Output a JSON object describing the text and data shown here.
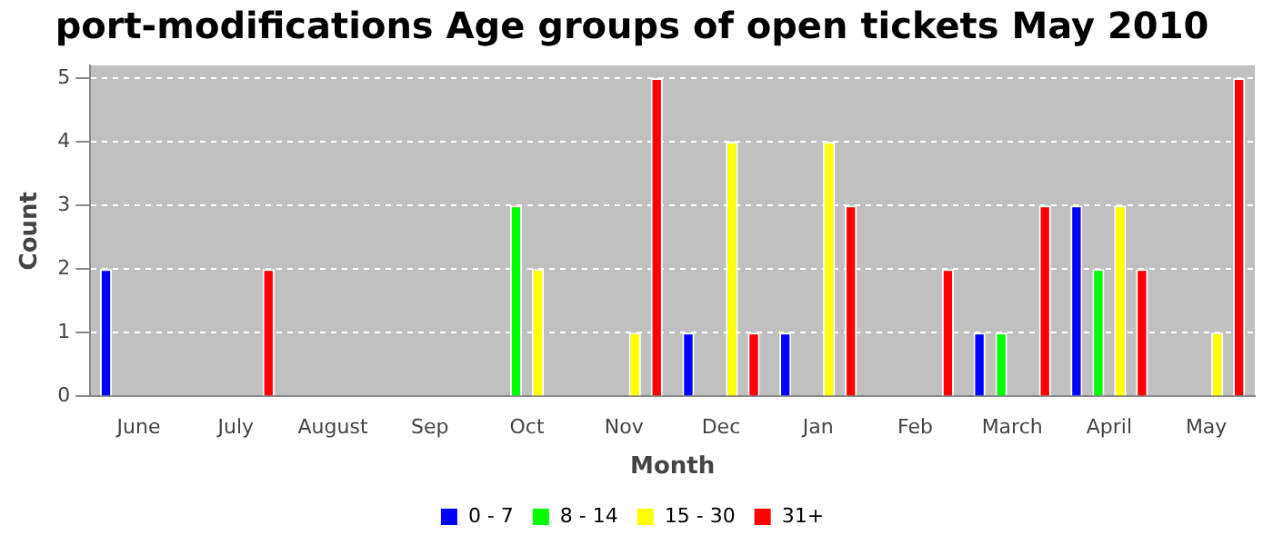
{
  "chart_data": {
    "type": "bar",
    "title": "port-modifications Age groups of open tickets May 2010",
    "xlabel": "Month",
    "ylabel": "Count",
    "categories": [
      "June",
      "July",
      "August",
      "Sep",
      "Oct",
      "Nov",
      "Dec",
      "Jan",
      "Feb",
      "March",
      "April",
      "May"
    ],
    "series": [
      {
        "name": "0 - 7",
        "color": "#0000ff",
        "values": [
          2,
          0,
          0,
          0,
          0,
          0,
          1,
          1,
          0,
          1,
          3,
          0
        ]
      },
      {
        "name": "8 - 14",
        "color": "#00ff00",
        "values": [
          0,
          0,
          0,
          0,
          3,
          0,
          0,
          0,
          0,
          1,
          2,
          0
        ]
      },
      {
        "name": "15 - 30",
        "color": "#ffff00",
        "values": [
          0,
          0,
          0,
          0,
          2,
          1,
          4,
          4,
          0,
          0,
          3,
          1
        ]
      },
      {
        "name": "31+",
        "color": "#ff0000",
        "values": [
          0,
          2,
          0,
          0,
          0,
          5,
          1,
          3,
          2,
          3,
          2,
          5
        ]
      }
    ],
    "ylim": [
      0,
      5.2
    ],
    "yticks": [
      0,
      1,
      2,
      3,
      4,
      5
    ],
    "grid": "y",
    "legend": "bottom"
  }
}
